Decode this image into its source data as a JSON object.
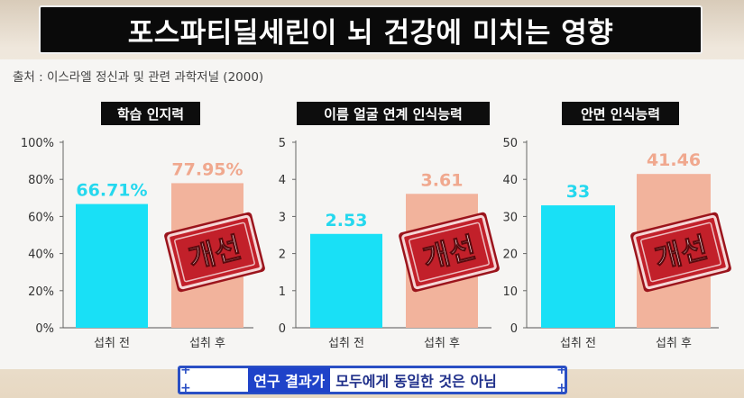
{
  "header": {
    "title": "포스파티딜세린이 뇌 건강에 미치는 영향",
    "source": "출처 : 이스라엘 정신과 및 관련 과학저널 (2000)"
  },
  "colors": {
    "before": "#19e0f6",
    "after": "#f2b39c",
    "before_label": "#25d8ee",
    "after_label": "#f0a88e",
    "stamp": "#c2202a",
    "caption_accent": "#1f43c9"
  },
  "stamp_text": "개선",
  "caption": {
    "highlight": "연구 결과가",
    "rest": "모두에게 동일한 것은 아님"
  },
  "chart_data": [
    {
      "type": "bar",
      "title": "학습 인지력",
      "categories": [
        "섭취 전",
        "섭취 후"
      ],
      "values": [
        66.71,
        77.95
      ],
      "value_labels": [
        "66.71%",
        "77.95%"
      ],
      "ylim": [
        0,
        100
      ],
      "ticks": [
        "0%",
        "20%",
        "40%",
        "60%",
        "80%",
        "100%"
      ],
      "tick_values": [
        0,
        20,
        40,
        60,
        80,
        100
      ]
    },
    {
      "type": "bar",
      "title": "이름 얼굴 연계 인식능력",
      "categories": [
        "섭취 전",
        "섭취 후"
      ],
      "values": [
        2.53,
        3.61
      ],
      "value_labels": [
        "2.53",
        "3.61"
      ],
      "ylim": [
        0,
        5
      ],
      "ticks": [
        "0",
        "1",
        "2",
        "3",
        "4",
        "5"
      ],
      "tick_values": [
        0,
        1,
        2,
        3,
        4,
        5
      ]
    },
    {
      "type": "bar",
      "title": "안면 인식능력",
      "categories": [
        "섭취 전",
        "섭취 후"
      ],
      "values": [
        33,
        41.46
      ],
      "value_labels": [
        "33",
        "41.46"
      ],
      "ylim": [
        0,
        50
      ],
      "ticks": [
        "0",
        "10",
        "20",
        "30",
        "40",
        "50"
      ],
      "tick_values": [
        0,
        10,
        20,
        30,
        40,
        50
      ]
    }
  ]
}
